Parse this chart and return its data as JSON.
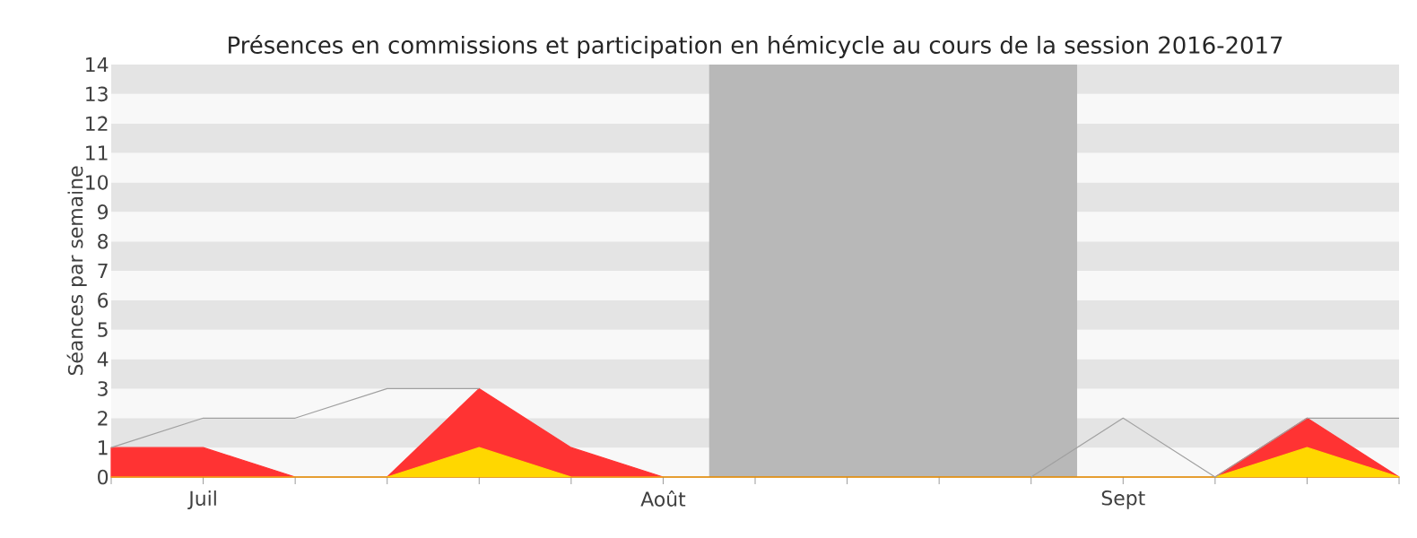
{
  "chart_data": {
    "type": "area",
    "title": "Présences en commissions et participation en hémicycle au cours de la session 2016-2017",
    "ylabel": "Séances par semaine",
    "categories": [
      null,
      "Juil",
      null,
      null,
      null,
      null,
      "Août",
      null,
      null,
      null,
      null,
      "Sept",
      null,
      null,
      null
    ],
    "series": [
      {
        "color": "#ff3333",
        "values": [
          1,
          1,
          0,
          0,
          3,
          1,
          0,
          0,
          0,
          0,
          0,
          0,
          0,
          2,
          0
        ]
      },
      {
        "color": "#ffd700",
        "values": [
          0,
          0,
          0,
          0,
          1,
          0,
          0,
          0,
          0,
          0,
          0,
          0,
          0,
          1,
          0
        ]
      },
      {
        "type": "line",
        "color": "#a0a0a0",
        "values": [
          1,
          2,
          2,
          3,
          3,
          null,
          null,
          null,
          null,
          null,
          0,
          2,
          0,
          2,
          2
        ]
      }
    ],
    "ylim": [
      0,
      14
    ],
    "yticks": [
      0,
      1,
      2,
      3,
      4,
      5,
      6,
      7,
      8,
      9,
      10,
      11,
      12,
      13,
      14
    ]
  }
}
